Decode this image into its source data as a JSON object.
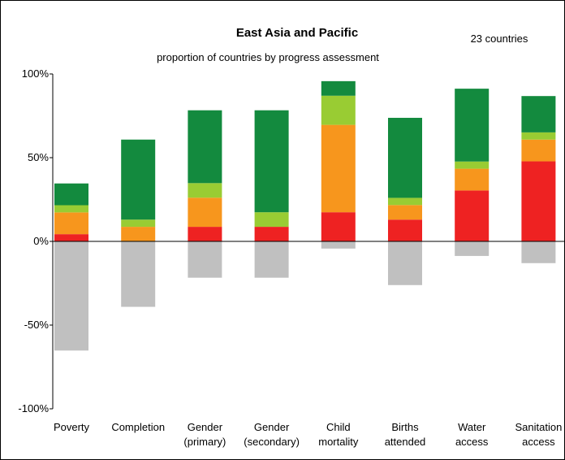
{
  "chart_data": {
    "type": "stacked_bar",
    "title": "East Asia and Pacific",
    "subtitle": "proportion of countries by progress assessment",
    "annotation": "23 countries",
    "categories": [
      [
        "Poverty"
      ],
      [
        "Completion"
      ],
      [
        "Gender",
        "(primary)"
      ],
      [
        "Gender",
        "(secondary)"
      ],
      [
        "Child",
        "mortality"
      ],
      [
        "Births",
        "attended"
      ],
      [
        "Water",
        "access"
      ],
      [
        "Sanitation",
        "access"
      ]
    ],
    "series": [
      {
        "color": "#ee2222",
        "values": [
          4.3,
          0,
          8.7,
          8.7,
          17.4,
          13.0,
          30.4,
          47.8
        ]
      },
      {
        "color": "#f7961d",
        "values": [
          13.0,
          8.7,
          17.4,
          0,
          52.2,
          8.7,
          13.0,
          13.0
        ]
      },
      {
        "color": "#99cc33",
        "values": [
          4.3,
          4.3,
          8.7,
          8.7,
          17.4,
          4.3,
          4.3,
          4.3
        ]
      },
      {
        "color": "#138a3e",
        "values": [
          13.0,
          47.8,
          43.5,
          60.9,
          8.7,
          47.8,
          43.5,
          21.7
        ]
      },
      {
        "color": "#c0c0c0",
        "values": [
          -65.2,
          -39.1,
          -21.7,
          -21.7,
          -4.3,
          -26.1,
          -8.7,
          -13.0
        ]
      }
    ],
    "ylim": [
      -100,
      100
    ],
    "yticks": [
      {
        "value": -100,
        "label": "-100%"
      },
      {
        "value": -50,
        "label": "-50%"
      },
      {
        "value": 0,
        "label": "0%"
      },
      {
        "value": 50,
        "label": "50%"
      },
      {
        "value": 100,
        "label": "100%"
      }
    ]
  }
}
